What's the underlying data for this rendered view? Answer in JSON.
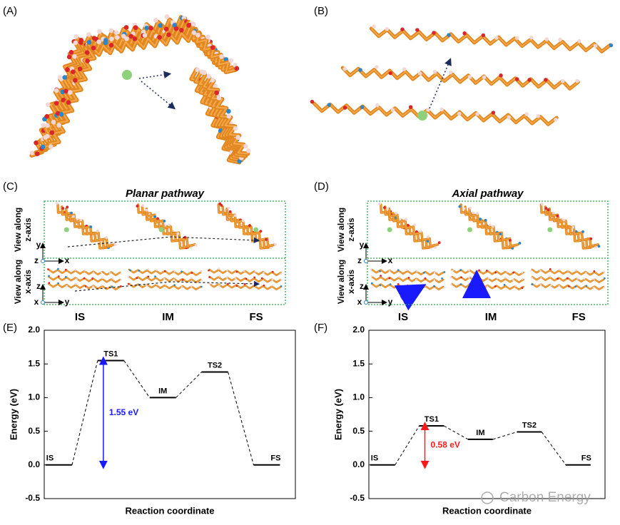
{
  "panel_labels": [
    "(A)",
    "(B)",
    "(C)",
    "(D)",
    "(E)",
    "(F)"
  ],
  "pathway_panels": [
    {
      "title": "Planar pathway",
      "view_labels": [
        [
          "View along",
          "z-axis"
        ],
        [
          "View along",
          "x-axis"
        ]
      ],
      "axes_top": [
        "y",
        "z",
        "x"
      ],
      "axes_bottom": [
        "z",
        "x",
        "y"
      ],
      "states": [
        "IS",
        "IM",
        "FS"
      ]
    },
    {
      "title": "Axial pathway",
      "view_labels": [
        [
          "View along",
          "z-axis"
        ],
        [
          "View along",
          "x-axis"
        ]
      ],
      "axes_top": [
        "y",
        "z",
        "x"
      ],
      "axes_bottom": [
        "z",
        "x",
        "y"
      ],
      "states": [
        "IS",
        "IM",
        "FS"
      ]
    }
  ],
  "watermark": "Carbon Energy",
  "chart_data": [
    {
      "type": "energy-profile",
      "ylabel": "Energy (eV)",
      "xlabel": "Reaction coordinate",
      "categories": [
        "IS",
        "TS1",
        "IM",
        "TS2",
        "FS"
      ],
      "values": [
        0,
        1.55,
        1.0,
        1.38,
        0
      ],
      "ylim": [
        -0.5,
        2.0
      ],
      "yticks": [
        -0.5,
        {
          "value": 0,
          "label": "0.0"
        },
        0.5,
        {
          "value": 1,
          "label": "1.0"
        },
        1.5,
        {
          "value": 2,
          "label": "2.0"
        }
      ],
      "barrier": {
        "label": "1.55 eV",
        "value": 1.55,
        "color": "#1a1aff"
      }
    },
    {
      "type": "energy-profile",
      "ylabel": "Energy (eV)",
      "xlabel": "Reaction coordinate",
      "categories": [
        "IS",
        "TS1",
        "IM",
        "TS2",
        "FS"
      ],
      "values": [
        0,
        0.58,
        0.38,
        0.49,
        0
      ],
      "ylim": [
        -0.5,
        2.0
      ],
      "yticks": [
        -0.5,
        {
          "value": 0,
          "label": "0.0"
        },
        0.5,
        {
          "value": 1,
          "label": "1.0"
        },
        1.5,
        {
          "value": 2,
          "label": "2.0"
        }
      ],
      "barrier": {
        "label": "0.58 eV",
        "value": 0.58,
        "color": "#ff1a1a"
      }
    }
  ]
}
